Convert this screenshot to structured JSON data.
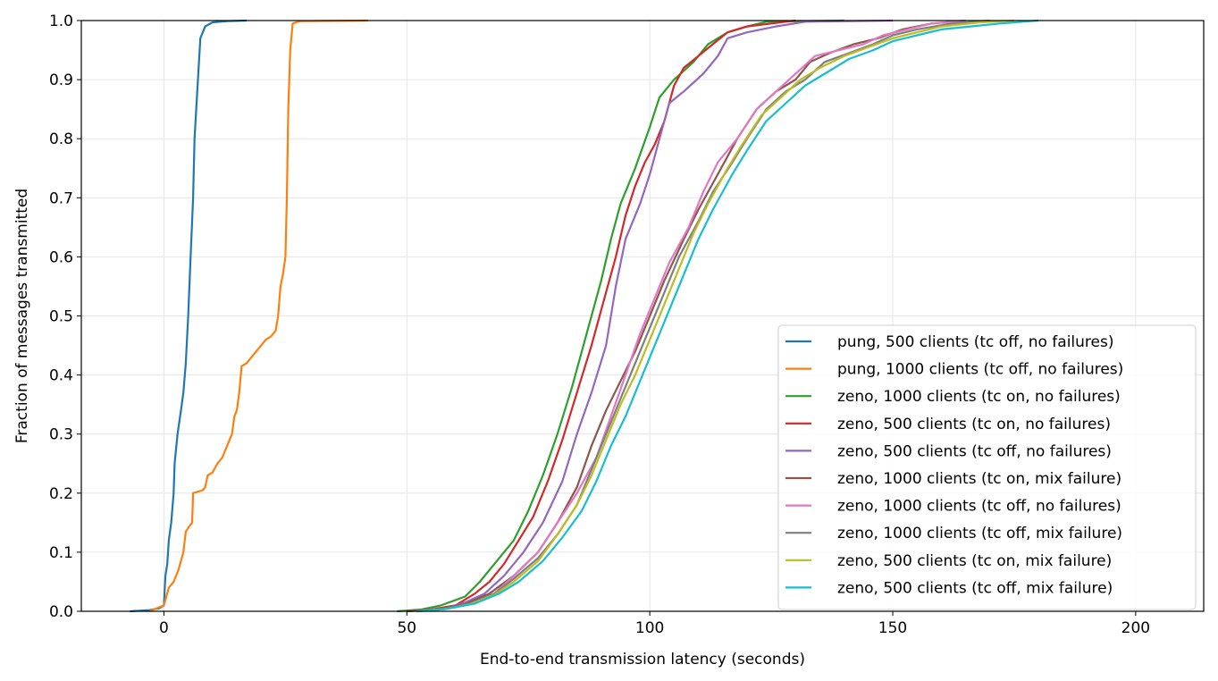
{
  "chart_data": {
    "type": "line",
    "xlabel": "End-to-end transmission latency (seconds)",
    "ylabel": "Fraction of messages transmitted",
    "xlim": [
      -17,
      214
    ],
    "ylim": [
      0.0,
      1.0
    ],
    "x_ticks": [
      0,
      50,
      100,
      150,
      200
    ],
    "x_tick_labels": [
      "0",
      "50",
      "100",
      "150",
      "200"
    ],
    "y_ticks": [
      0.0,
      0.1,
      0.2,
      0.3,
      0.4,
      0.5,
      0.6,
      0.7,
      0.8,
      0.9,
      1.0
    ],
    "y_tick_labels": [
      "0.0",
      "0.1",
      "0.2",
      "0.3",
      "0.4",
      "0.5",
      "0.6",
      "0.7",
      "0.8",
      "0.9",
      "1.0"
    ],
    "grid": true,
    "legend_position": "bottom-right",
    "series": [
      {
        "name": "pung, 500 clients (tc off, no failures)",
        "color": "#1f77b4",
        "points": [
          [
            -7,
            0
          ],
          [
            -3,
            0.002
          ],
          [
            -1,
            0.005
          ],
          [
            0,
            0.01
          ],
          [
            0.3,
            0.06
          ],
          [
            0.7,
            0.08
          ],
          [
            1,
            0.12
          ],
          [
            1.5,
            0.15
          ],
          [
            2,
            0.2
          ],
          [
            2.2,
            0.25
          ],
          [
            2.8,
            0.3
          ],
          [
            3.5,
            0.34
          ],
          [
            4,
            0.37
          ],
          [
            4.5,
            0.42
          ],
          [
            5,
            0.5
          ],
          [
            5.5,
            0.6
          ],
          [
            6,
            0.7
          ],
          [
            6.3,
            0.8
          ],
          [
            7,
            0.9
          ],
          [
            7.5,
            0.97
          ],
          [
            8.5,
            0.99
          ],
          [
            10,
            0.997
          ],
          [
            13,
            0.999
          ],
          [
            17,
            1.0
          ]
        ]
      },
      {
        "name": "pung, 1000 clients (tc off, no failures)",
        "color": "#ff7f0e",
        "points": [
          [
            -3,
            0
          ],
          [
            0,
            0.01
          ],
          [
            1,
            0.04
          ],
          [
            2,
            0.05
          ],
          [
            3,
            0.07
          ],
          [
            4,
            0.1
          ],
          [
            4.5,
            0.135
          ],
          [
            5.3,
            0.145
          ],
          [
            5.8,
            0.15
          ],
          [
            6,
            0.2
          ],
          [
            8,
            0.205
          ],
          [
            8.5,
            0.21
          ],
          [
            9,
            0.23
          ],
          [
            10,
            0.235
          ],
          [
            11,
            0.25
          ],
          [
            12,
            0.26
          ],
          [
            13,
            0.28
          ],
          [
            14,
            0.3
          ],
          [
            14.5,
            0.33
          ],
          [
            15,
            0.34
          ],
          [
            15.5,
            0.37
          ],
          [
            16,
            0.415
          ],
          [
            17,
            0.42
          ],
          [
            18,
            0.43
          ],
          [
            19,
            0.44
          ],
          [
            20,
            0.45
          ],
          [
            21,
            0.46
          ],
          [
            22,
            0.465
          ],
          [
            23,
            0.475
          ],
          [
            23.5,
            0.5
          ],
          [
            24,
            0.55
          ],
          [
            24.5,
            0.57
          ],
          [
            25,
            0.6
          ],
          [
            25.3,
            0.7
          ],
          [
            25.6,
            0.85
          ],
          [
            26,
            0.95
          ],
          [
            26.5,
            0.995
          ],
          [
            28,
            0.999
          ],
          [
            42,
            1.0
          ]
        ]
      },
      {
        "name": "zeno, 1000 clients (tc on, no failures)",
        "color": "#2ca02c",
        "points": [
          [
            48,
            0
          ],
          [
            53,
            0.003
          ],
          [
            57,
            0.01
          ],
          [
            62,
            0.025
          ],
          [
            65,
            0.05
          ],
          [
            68,
            0.08
          ],
          [
            72,
            0.12
          ],
          [
            75,
            0.17
          ],
          [
            78,
            0.23
          ],
          [
            81,
            0.3
          ],
          [
            84,
            0.38
          ],
          [
            87,
            0.47
          ],
          [
            90,
            0.56
          ],
          [
            92,
            0.63
          ],
          [
            94,
            0.69
          ],
          [
            97,
            0.75
          ],
          [
            100,
            0.82
          ],
          [
            102,
            0.87
          ],
          [
            105,
            0.9
          ],
          [
            109,
            0.93
          ],
          [
            112,
            0.96
          ],
          [
            116,
            0.98
          ],
          [
            120,
            0.99
          ],
          [
            124,
            0.998
          ],
          [
            140,
            1.0
          ]
        ]
      },
      {
        "name": "zeno, 500 clients (tc on, no failures)",
        "color": "#d62728",
        "points": [
          [
            50,
            0
          ],
          [
            55,
            0.003
          ],
          [
            60,
            0.01
          ],
          [
            64,
            0.03
          ],
          [
            67,
            0.05
          ],
          [
            70,
            0.08
          ],
          [
            73,
            0.12
          ],
          [
            76,
            0.16
          ],
          [
            79,
            0.22
          ],
          [
            82,
            0.29
          ],
          [
            85,
            0.37
          ],
          [
            88,
            0.45
          ],
          [
            91,
            0.54
          ],
          [
            93,
            0.6
          ],
          [
            95,
            0.67
          ],
          [
            97,
            0.72
          ],
          [
            99,
            0.76
          ],
          [
            101,
            0.79
          ],
          [
            103,
            0.83
          ],
          [
            105,
            0.89
          ],
          [
            107,
            0.92
          ],
          [
            110,
            0.94
          ],
          [
            113,
            0.96
          ],
          [
            116,
            0.98
          ],
          [
            120,
            0.99
          ],
          [
            125,
            0.995
          ],
          [
            130,
            1.0
          ]
        ]
      },
      {
        "name": "zeno, 500 clients (tc off, no failures)",
        "color": "#9467bd",
        "points": [
          [
            52,
            0
          ],
          [
            58,
            0.005
          ],
          [
            62,
            0.015
          ],
          [
            66,
            0.03
          ],
          [
            70,
            0.06
          ],
          [
            74,
            0.1
          ],
          [
            78,
            0.15
          ],
          [
            82,
            0.22
          ],
          [
            85,
            0.3
          ],
          [
            88,
            0.37
          ],
          [
            91,
            0.45
          ],
          [
            93,
            0.55
          ],
          [
            95,
            0.63
          ],
          [
            98,
            0.69
          ],
          [
            100,
            0.74
          ],
          [
            102,
            0.8
          ],
          [
            104,
            0.86
          ],
          [
            107,
            0.88
          ],
          [
            111,
            0.91
          ],
          [
            114,
            0.94
          ],
          [
            116,
            0.97
          ],
          [
            120,
            0.98
          ],
          [
            126,
            0.99
          ],
          [
            132,
            0.998
          ],
          [
            150,
            1.0
          ]
        ]
      },
      {
        "name": "zeno, 1000 clients (tc on, mix failure)",
        "color": "#8c564b",
        "points": [
          [
            50,
            0
          ],
          [
            56,
            0.003
          ],
          [
            62,
            0.012
          ],
          [
            67,
            0.03
          ],
          [
            72,
            0.06
          ],
          [
            77,
            0.1
          ],
          [
            81,
            0.15
          ],
          [
            85,
            0.21
          ],
          [
            88,
            0.28
          ],
          [
            91,
            0.34
          ],
          [
            94,
            0.39
          ],
          [
            97,
            0.44
          ],
          [
            100,
            0.5
          ],
          [
            103,
            0.56
          ],
          [
            107,
            0.63
          ],
          [
            110,
            0.68
          ],
          [
            114,
            0.74
          ],
          [
            118,
            0.8
          ],
          [
            122,
            0.85
          ],
          [
            126,
            0.88
          ],
          [
            130,
            0.9
          ],
          [
            133,
            0.93
          ],
          [
            137,
            0.945
          ],
          [
            142,
            0.96
          ],
          [
            147,
            0.97
          ],
          [
            152,
            0.985
          ],
          [
            158,
            0.995
          ],
          [
            165,
            1.0
          ]
        ]
      },
      {
        "name": "zeno, 1000 clients (tc off, no failures)",
        "color": "#e377c2",
        "points": [
          [
            52,
            0
          ],
          [
            58,
            0.004
          ],
          [
            63,
            0.012
          ],
          [
            68,
            0.03
          ],
          [
            72,
            0.06
          ],
          [
            77,
            0.1
          ],
          [
            81,
            0.15
          ],
          [
            85,
            0.2
          ],
          [
            89,
            0.26
          ],
          [
            92,
            0.33
          ],
          [
            95,
            0.4
          ],
          [
            98,
            0.47
          ],
          [
            101,
            0.53
          ],
          [
            104,
            0.59
          ],
          [
            108,
            0.65
          ],
          [
            111,
            0.71
          ],
          [
            114,
            0.76
          ],
          [
            118,
            0.8
          ],
          [
            122,
            0.85
          ],
          [
            126,
            0.88
          ],
          [
            130,
            0.91
          ],
          [
            134,
            0.94
          ],
          [
            139,
            0.95
          ],
          [
            144,
            0.96
          ],
          [
            148,
            0.975
          ],
          [
            153,
            0.985
          ],
          [
            158,
            0.995
          ],
          [
            165,
            1.0
          ]
        ]
      },
      {
        "name": "zeno, 1000 clients (tc off, mix failure)",
        "color": "#7f7f7f",
        "points": [
          [
            52,
            0
          ],
          [
            58,
            0.004
          ],
          [
            63,
            0.013
          ],
          [
            68,
            0.03
          ],
          [
            72,
            0.055
          ],
          [
            77,
            0.09
          ],
          [
            81,
            0.13
          ],
          [
            85,
            0.18
          ],
          [
            88,
            0.24
          ],
          [
            91,
            0.3
          ],
          [
            94,
            0.36
          ],
          [
            97,
            0.42
          ],
          [
            100,
            0.48
          ],
          [
            103,
            0.54
          ],
          [
            106,
            0.6
          ],
          [
            110,
            0.66
          ],
          [
            113,
            0.71
          ],
          [
            117,
            0.76
          ],
          [
            120,
            0.8
          ],
          [
            124,
            0.85
          ],
          [
            128,
            0.88
          ],
          [
            132,
            0.9
          ],
          [
            136,
            0.93
          ],
          [
            141,
            0.945
          ],
          [
            146,
            0.96
          ],
          [
            150,
            0.975
          ],
          [
            155,
            0.985
          ],
          [
            162,
            0.995
          ],
          [
            170,
            1.0
          ]
        ]
      },
      {
        "name": "zeno, 500 clients (tc on, mix failure)",
        "color": "#bcbd22",
        "points": [
          [
            52,
            0
          ],
          [
            58,
            0.004
          ],
          [
            63,
            0.012
          ],
          [
            68,
            0.028
          ],
          [
            72,
            0.05
          ],
          [
            77,
            0.085
          ],
          [
            81,
            0.13
          ],
          [
            85,
            0.18
          ],
          [
            88,
            0.23
          ],
          [
            91,
            0.29
          ],
          [
            94,
            0.35
          ],
          [
            97,
            0.4
          ],
          [
            100,
            0.46
          ],
          [
            103,
            0.52
          ],
          [
            106,
            0.58
          ],
          [
            109,
            0.64
          ],
          [
            112,
            0.69
          ],
          [
            116,
            0.75
          ],
          [
            119,
            0.79
          ],
          [
            123,
            0.84
          ],
          [
            127,
            0.87
          ],
          [
            131,
            0.9
          ],
          [
            135,
            0.92
          ],
          [
            140,
            0.94
          ],
          [
            145,
            0.955
          ],
          [
            150,
            0.97
          ],
          [
            155,
            0.98
          ],
          [
            160,
            0.99
          ],
          [
            168,
            0.997
          ],
          [
            175,
            1.0
          ]
        ]
      },
      {
        "name": "zeno, 500 clients (tc off, mix failure)",
        "color": "#17becf",
        "points": [
          [
            52,
            0
          ],
          [
            58,
            0.004
          ],
          [
            64,
            0.013
          ],
          [
            69,
            0.03
          ],
          [
            73,
            0.05
          ],
          [
            78,
            0.085
          ],
          [
            82,
            0.125
          ],
          [
            86,
            0.17
          ],
          [
            89,
            0.22
          ],
          [
            92,
            0.28
          ],
          [
            95,
            0.33
          ],
          [
            98,
            0.39
          ],
          [
            101,
            0.45
          ],
          [
            104,
            0.51
          ],
          [
            107,
            0.57
          ],
          [
            110,
            0.63
          ],
          [
            113,
            0.68
          ],
          [
            117,
            0.74
          ],
          [
            120,
            0.78
          ],
          [
            124,
            0.83
          ],
          [
            128,
            0.86
          ],
          [
            132,
            0.89
          ],
          [
            136,
            0.91
          ],
          [
            141,
            0.935
          ],
          [
            146,
            0.95
          ],
          [
            150,
            0.965
          ],
          [
            155,
            0.975
          ],
          [
            160,
            0.985
          ],
          [
            166,
            0.99
          ],
          [
            172,
            0.995
          ],
          [
            180,
            1.0
          ]
        ]
      }
    ]
  }
}
